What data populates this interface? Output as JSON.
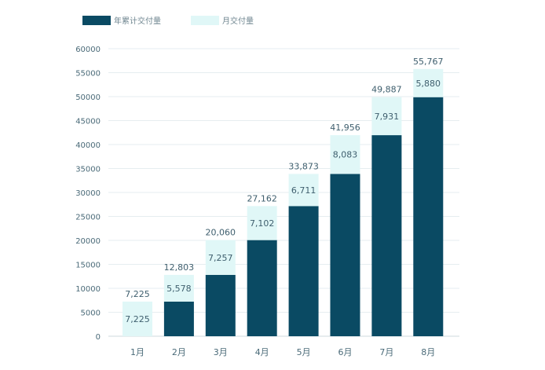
{
  "colors": {
    "cumulative": "#0a4a63",
    "monthly": "#e0f7f7",
    "axis_text": "#4a6a78",
    "value_text": "#3f5f6e",
    "grid": "#e6edf0",
    "axis_line": "#cfd8dc"
  },
  "chart_data": {
    "type": "bar",
    "stacked": true,
    "title": "",
    "xlabel": "",
    "ylabel": "",
    "legend_position": "top-left",
    "ylim": [
      0,
      60000
    ],
    "yticks": [
      "0",
      "5000",
      "10000",
      "15000",
      "20000",
      "25000",
      "30000",
      "35000",
      "40000",
      "45000",
      "50000",
      "55000",
      "60000"
    ],
    "categories": [
      "1月",
      "2月",
      "3月",
      "4月",
      "5月",
      "6月",
      "7月",
      "8月"
    ],
    "series": [
      {
        "name": "年累计交付量",
        "values": [
          0,
          7225,
          12803,
          20060,
          27162,
          33873,
          41956,
          49887
        ]
      },
      {
        "name": "月交付量",
        "values": [
          7225,
          5578,
          7257,
          7102,
          6711,
          8083,
          7931,
          5880
        ]
      }
    ],
    "monthly_labels": [
      "7,225",
      "5,578",
      "7,257",
      "7,102",
      "6,711",
      "8,083",
      "7,931",
      "5,880"
    ],
    "total_labels": [
      "7,225",
      "12,803",
      "20,060",
      "27,162",
      "33,873",
      "41,956",
      "49,887",
      "55,767"
    ]
  }
}
